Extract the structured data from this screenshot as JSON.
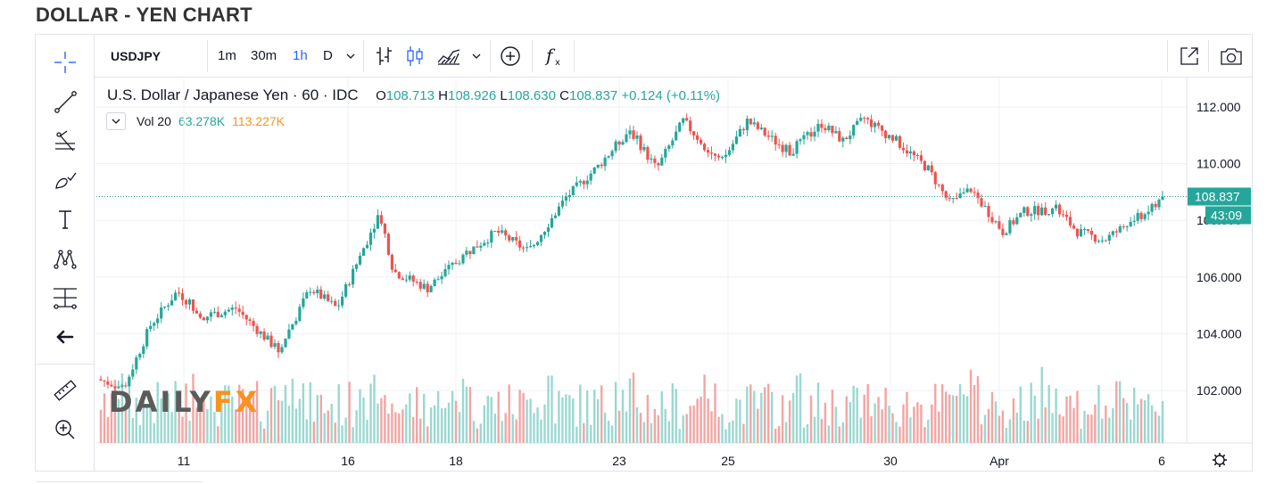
{
  "page_title": "DOLLAR - YEN CHART",
  "toolbar": {
    "symbol": "USDJPY",
    "intervals": [
      {
        "label": "1m",
        "active": false
      },
      {
        "label": "30m",
        "active": false
      },
      {
        "label": "1h",
        "active": true
      },
      {
        "label": "D",
        "active": false
      }
    ],
    "icons": [
      "chevron-down-icon",
      "bar-style-icon",
      "candle-style-icon",
      "area-style-icon",
      "chevron-down-icon",
      "add-compare-icon",
      "indicators-icon",
      "fullscreen-icon",
      "camera-icon"
    ]
  },
  "left_toolbar": [
    "crosshair-icon",
    "trend-line-icon",
    "fib-icon",
    "brush-icon",
    "text-icon",
    "pattern-icon",
    "measure-icon",
    "back-arrow-icon",
    "ruler-icon",
    "zoom-icon"
  ],
  "legend": {
    "title": "U.S. Dollar / Japanese Yen · 60 · IDC",
    "open_label": "O",
    "open": "108.713",
    "high_label": "H",
    "high": "108.926",
    "low_label": "L",
    "low": "108.630",
    "close_label": "C",
    "close": "108.837",
    "change": "+0.124 (+0.11%)"
  },
  "volume_legend": {
    "label": "Vol 20",
    "value1": "63.278K",
    "value2": "113.227K"
  },
  "last_price_label": "108.837",
  "countdown_label": "43:09",
  "watermark": {
    "part1": "DAILY",
    "part2": "FX"
  },
  "colors": {
    "up": "#26a69a",
    "down": "#ef5350",
    "vol_up": "#9ad8d1",
    "vol_down": "#f2a5a3",
    "accent": "#2962ff",
    "grid": "#eef0f3"
  },
  "chart_data": {
    "type": "candlestick",
    "symbol": "USDJPY",
    "interval": "60",
    "y_ticks": [
      "112.000",
      "110.000",
      "108.000",
      "106.000",
      "104.000",
      "102.000"
    ],
    "ylim": [
      100.15,
      113.0
    ],
    "x_ticks": [
      "11",
      "16",
      "18",
      "23",
      "25",
      "30",
      "Apr",
      "6"
    ],
    "price_path": [
      {
        "t": 0.0,
        "v": 102.4
      },
      {
        "t": 0.025,
        "v": 102.1
      },
      {
        "t": 0.05,
        "v": 104.3
      },
      {
        "t": 0.075,
        "v": 105.5
      },
      {
        "t": 0.1,
        "v": 104.6
      },
      {
        "t": 0.13,
        "v": 104.9
      },
      {
        "t": 0.17,
        "v": 103.4
      },
      {
        "t": 0.2,
        "v": 105.6
      },
      {
        "t": 0.225,
        "v": 104.9
      },
      {
        "t": 0.265,
        "v": 108.3
      },
      {
        "t": 0.278,
        "v": 106.2
      },
      {
        "t": 0.31,
        "v": 105.6
      },
      {
        "t": 0.345,
        "v": 106.8
      },
      {
        "t": 0.375,
        "v": 107.6
      },
      {
        "t": 0.405,
        "v": 106.9
      },
      {
        "t": 0.44,
        "v": 108.8
      },
      {
        "t": 0.47,
        "v": 109.9
      },
      {
        "t": 0.5,
        "v": 111.2
      },
      {
        "t": 0.525,
        "v": 109.8
      },
      {
        "t": 0.55,
        "v": 111.5
      },
      {
        "t": 0.585,
        "v": 110.0
      },
      {
        "t": 0.61,
        "v": 111.5
      },
      {
        "t": 0.65,
        "v": 110.4
      },
      {
        "t": 0.68,
        "v": 111.4
      },
      {
        "t": 0.7,
        "v": 110.8
      },
      {
        "t": 0.72,
        "v": 111.6
      },
      {
        "t": 0.75,
        "v": 110.8
      },
      {
        "t": 0.78,
        "v": 109.8
      },
      {
        "t": 0.8,
        "v": 108.6
      },
      {
        "t": 0.82,
        "v": 109.1
      },
      {
        "t": 0.85,
        "v": 107.6
      },
      {
        "t": 0.87,
        "v": 108.3
      },
      {
        "t": 0.9,
        "v": 108.4
      },
      {
        "t": 0.92,
        "v": 107.6
      },
      {
        "t": 0.945,
        "v": 107.3
      },
      {
        "t": 0.965,
        "v": 107.8
      },
      {
        "t": 0.985,
        "v": 108.3
      },
      {
        "t": 1.0,
        "v": 108.837
      }
    ],
    "last_price": 108.837
  }
}
